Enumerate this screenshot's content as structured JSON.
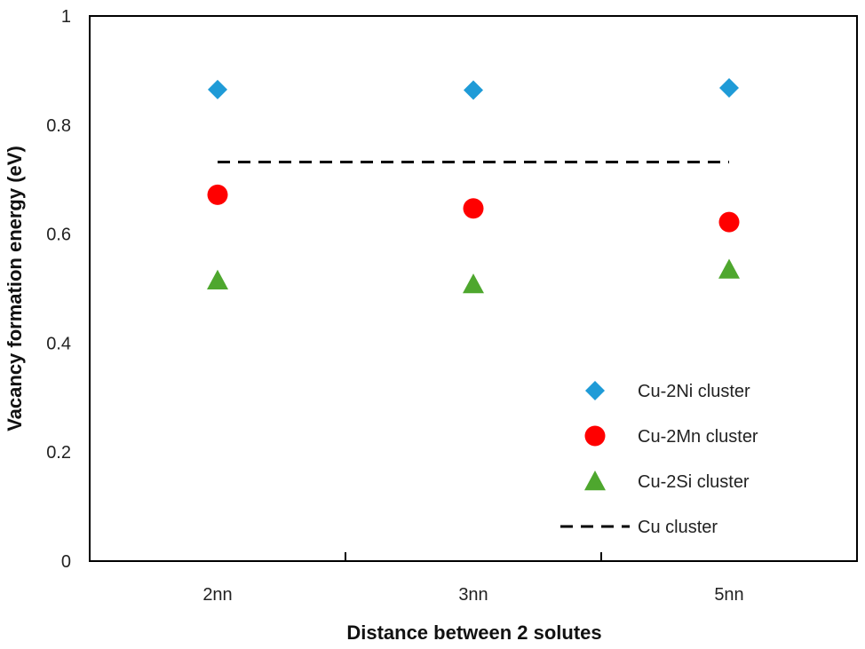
{
  "chart_data": {
    "type": "scatter",
    "title": "",
    "xlabel": "Distance between 2 solutes",
    "ylabel": "Vacancy formation energy (eV)",
    "categories": [
      "2nn",
      "3nn",
      "5nn"
    ],
    "ylim": [
      0,
      1
    ],
    "yticks": [
      "0",
      "0.2",
      "0.4",
      "0.6",
      "0.8",
      "1"
    ],
    "grid": false,
    "legend_position": "bottom-right",
    "series": [
      {
        "name": "Cu-2Ni cluster",
        "marker": "diamond",
        "color": "#1f9bd7",
        "values": [
          0.865,
          0.864,
          0.868
        ]
      },
      {
        "name": "Cu-2Mn cluster",
        "marker": "circle",
        "color": "#ff0000",
        "values": [
          0.672,
          0.647,
          0.622
        ]
      },
      {
        "name": "Cu-2Si cluster",
        "marker": "triangle",
        "color": "#4ea72e",
        "values": [
          0.515,
          0.508,
          0.535
        ]
      },
      {
        "name": "Cu cluster",
        "marker": "dashed-line",
        "color": "#000000",
        "values": [
          0.732,
          0.732,
          0.732
        ]
      }
    ]
  }
}
